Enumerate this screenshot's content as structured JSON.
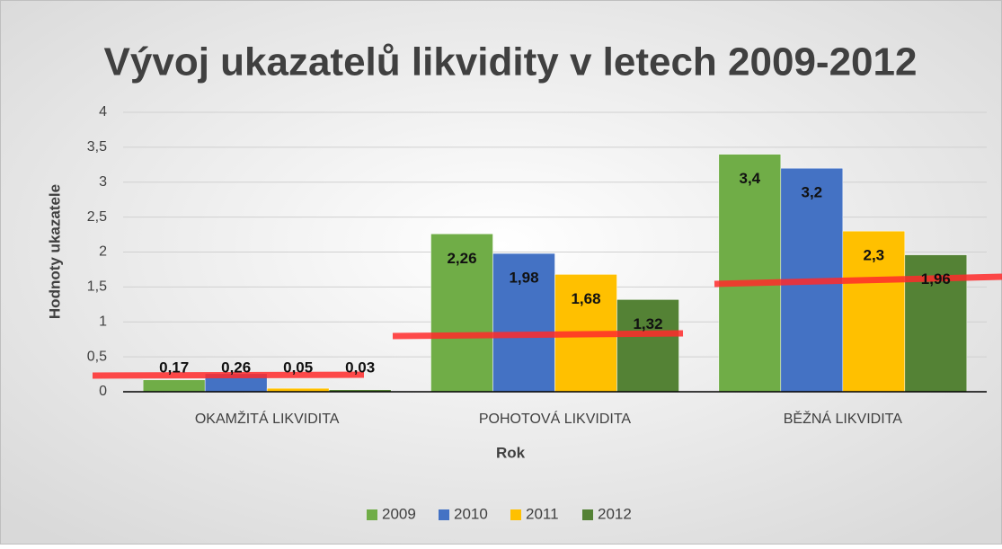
{
  "chart_data": {
    "type": "bar",
    "title": "Vývoj ukazatelů likvidity v letech 2009-2012",
    "x_label": "Rok",
    "y_label": "Hodnoty ukazatele",
    "categories": [
      "OKAMŽITÁ LIKVIDITA",
      "POHOTOVÁ LIKVIDITA",
      "BĚŽNÁ LIKVIDITA"
    ],
    "series": [
      {
        "name": "2009",
        "color": "#70ad47",
        "values": [
          0.17,
          2.26,
          3.4
        ],
        "value_labels": [
          "0,17",
          "2,26",
          "3,4"
        ]
      },
      {
        "name": "2010",
        "color": "#4472c4",
        "values": [
          0.26,
          1.98,
          3.2
        ],
        "value_labels": [
          "0,26",
          "1,98",
          "3,2"
        ]
      },
      {
        "name": "2011",
        "color": "#ffc000",
        "values": [
          0.05,
          1.68,
          2.3
        ],
        "value_labels": [
          "0,05",
          "1,68",
          "2,3"
        ]
      },
      {
        "name": "2012",
        "color": "#548235",
        "values": [
          0.03,
          1.32,
          1.96
        ],
        "value_labels": [
          "0,03",
          "1,32",
          "1,96"
        ]
      }
    ],
    "ylim": [
      0,
      4
    ],
    "yticks": [
      0,
      {
        "value": 0.5,
        "label": "0,5"
      },
      1,
      {
        "value": 1.5,
        "label": "1,5"
      },
      2,
      {
        "value": 2.5,
        "label": "2,5"
      },
      3,
      {
        "value": 3.5,
        "label": "3,5"
      },
      4
    ],
    "grid": true,
    "legend": "bottom"
  }
}
